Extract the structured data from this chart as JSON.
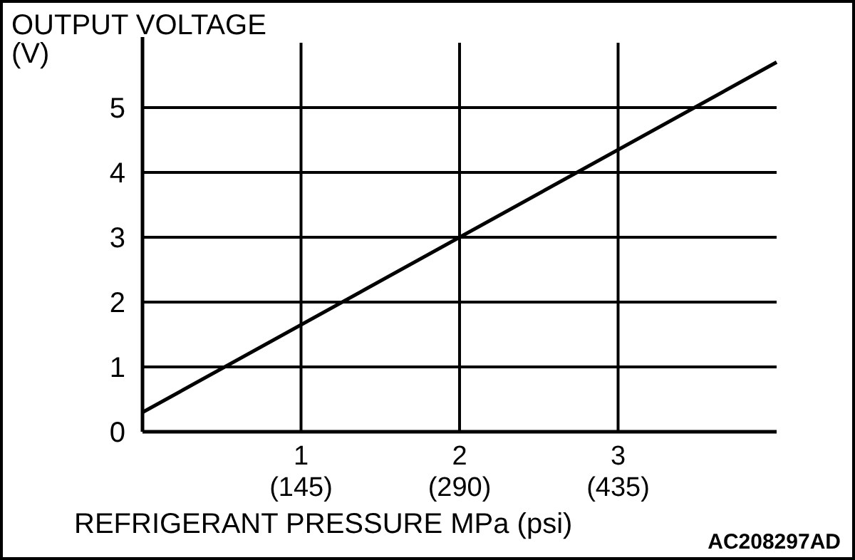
{
  "chart_data": {
    "type": "line",
    "ylabel": "OUTPUT VOLTAGE\n(V)",
    "xlabel": "REFRIGERANT PRESSURE MPa (psi)",
    "annotations": [
      "AC208297AD"
    ],
    "x": [
      0,
      4
    ],
    "series": [
      {
        "color": "#000000",
        "values": [
          0.3,
          5.7
        ]
      }
    ],
    "xlim": [
      0,
      4
    ],
    "ylim": [
      0,
      6
    ],
    "xticks": [
      1,
      2,
      3
    ],
    "x2lim": [
      0,
      580
    ],
    "x2ticks": [
      {
        "value": 145,
        "label": "(145)"
      },
      {
        "value": 290,
        "label": "(290)"
      },
      {
        "value": 435,
        "label": "(435)"
      }
    ],
    "yticks": [
      0,
      1,
      2,
      3,
      4,
      5
    ],
    "grid": true,
    "marker": "none",
    "line_style": "solid"
  }
}
